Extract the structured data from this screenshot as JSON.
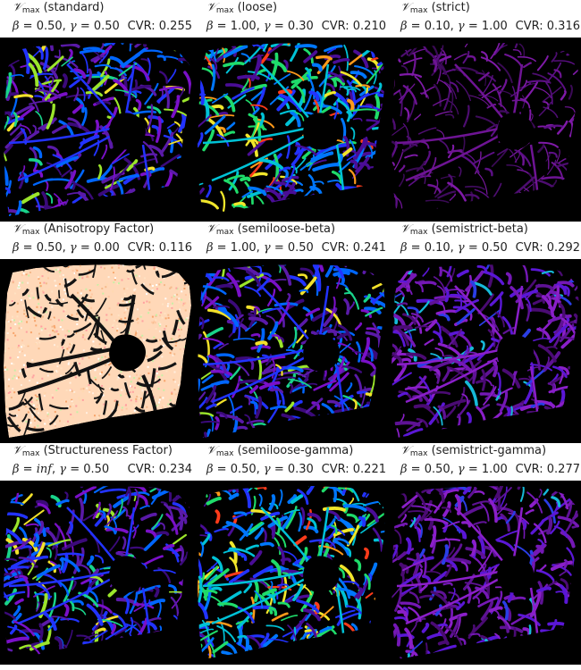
{
  "panels": [
    {
      "measure": "𝒱",
      "sub": "max",
      "name": "(standard)",
      "beta": "0.50",
      "gamma": "0.50",
      "cvr": "CVR: 0.255",
      "style": "rainbow"
    },
    {
      "measure": "𝒱",
      "sub": "max",
      "name": "(loose)",
      "beta": "1.00",
      "gamma": "0.30",
      "cvr": "CVR: 0.210",
      "style": "rainbow-strong"
    },
    {
      "measure": "𝒱",
      "sub": "max",
      "name": "(strict)",
      "beta": "0.10",
      "gamma": "1.00",
      "cvr": "CVR: 0.316",
      "style": "purple-faint"
    },
    {
      "measure": "𝒱",
      "sub": "max",
      "name": "(Anisotropy Factor)",
      "beta": "0.50",
      "gamma": "0.00",
      "cvr": "CVR: 0.116",
      "style": "noise"
    },
    {
      "measure": "𝒱",
      "sub": "max",
      "name": "(semiloose-beta)",
      "beta": "1.00",
      "gamma": "0.50",
      "cvr": "CVR: 0.241",
      "style": "rainbow"
    },
    {
      "measure": "𝒱",
      "sub": "max",
      "name": "(semistrict-beta)",
      "beta": "0.10",
      "gamma": "0.50",
      "cvr": "CVR: 0.292",
      "style": "purple"
    },
    {
      "measure": "𝒱",
      "sub": "max",
      "name": "(Structureness Factor)",
      "beta": "inf",
      "gamma": "0.50",
      "cvr": "CVR: 0.234",
      "style": "rainbow"
    },
    {
      "measure": "𝒱",
      "sub": "max",
      "name": "(semiloose-gamma)",
      "beta": "0.50",
      "gamma": "0.30",
      "cvr": "CVR: 0.221",
      "style": "rainbow-strong"
    },
    {
      "measure": "𝒱",
      "sub": "max",
      "name": "(semistrict-gamma)",
      "beta": "0.50",
      "gamma": "1.00",
      "cvr": "CVR: 0.277",
      "style": "purple"
    }
  ],
  "labels": {
    "beta_symbol": "β",
    "gamma_symbol": "γ",
    "equals": " = ",
    "sep": ", "
  }
}
